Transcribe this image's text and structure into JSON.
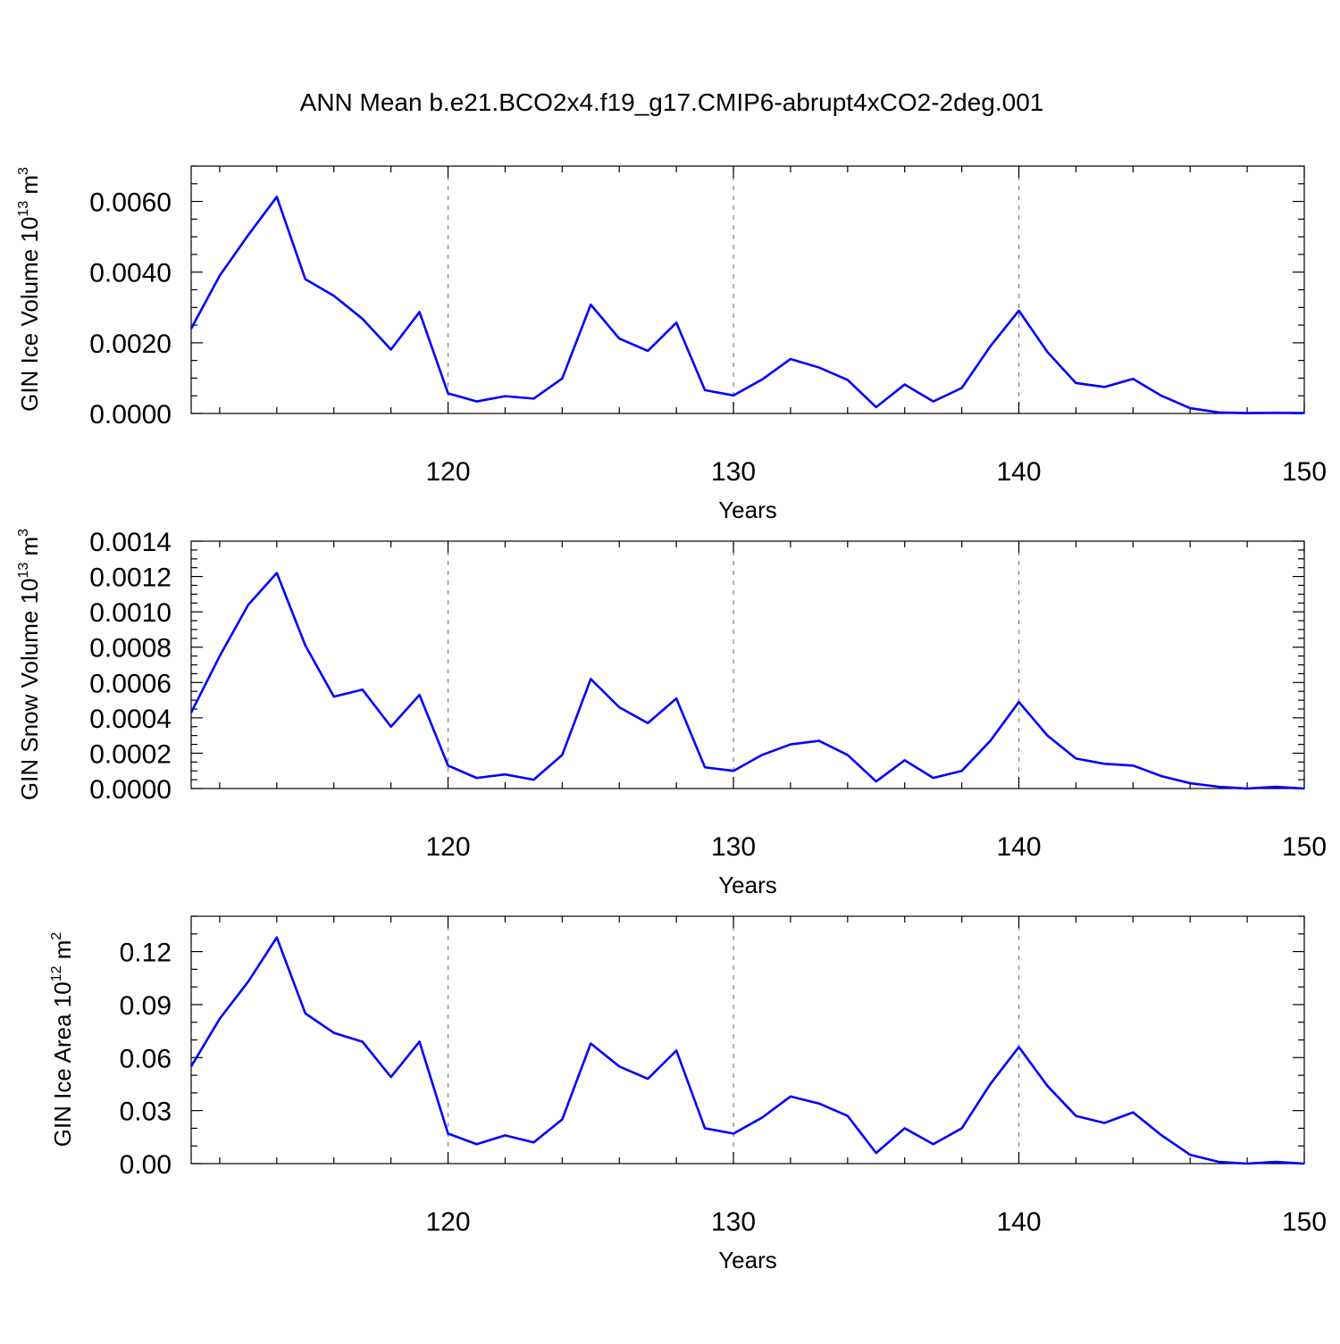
{
  "page": {
    "title": "ANN Mean b.e21.BCO2x4.f19_g17.CMIP6-abrupt4xCO2-2deg.001"
  },
  "colors": {
    "series": "#0000ff",
    "axes": "#000000",
    "grid": "#888888"
  },
  "chart_data": [
    {
      "type": "line",
      "title": "",
      "xlabel": "Years",
      "ylabel": "GIN Ice Volume 10",
      "ylabel_sup": "13",
      "ylabel_unit": " m",
      "ylabel_unit_sup": "3",
      "xlim": [
        111,
        150
      ],
      "ylim": [
        0,
        0.007
      ],
      "xticks": [
        120,
        130,
        140,
        150
      ],
      "xtick_labels": [
        "120",
        "130",
        "140",
        "150"
      ],
      "yticks": [
        0.0,
        0.002,
        0.004,
        0.006
      ],
      "ytick_labels": [
        "0.0000",
        "0.0020",
        "0.0040",
        "0.0060"
      ],
      "y_minor_step": 0.0005,
      "grid": "x-major dashed",
      "x": [
        111,
        112,
        113,
        114,
        115,
        116,
        117,
        118,
        119,
        120,
        121,
        122,
        123,
        124,
        125,
        126,
        127,
        128,
        129,
        130,
        131,
        132,
        133,
        134,
        135,
        136,
        137,
        138,
        139,
        140,
        141,
        142,
        143,
        144,
        145,
        146,
        147,
        148,
        149,
        150
      ],
      "series": [
        {
          "values": [
            0.0024,
            0.0039,
            0.00505,
            0.00613,
            0.0038,
            0.00333,
            0.00268,
            0.00181,
            0.00287,
            0.00057,
            0.00034,
            0.00049,
            0.00042,
            0.00099,
            0.00308,
            0.00212,
            0.00177,
            0.00257,
            0.00066,
            0.00051,
            0.00096,
            0.00154,
            0.0013,
            0.00095,
            0.00018,
            0.00082,
            0.00034,
            0.00072,
            0.0019,
            0.00291,
            0.00174,
            0.00086,
            0.00075,
            0.00098,
            0.0005,
            0.00015,
            3e-05,
            1e-05,
            2e-05,
            1e-05
          ]
        }
      ]
    },
    {
      "type": "line",
      "title": "",
      "xlabel": "Years",
      "ylabel": "GIN Snow Volume 10",
      "ylabel_sup": "13",
      "ylabel_unit": " m",
      "ylabel_unit_sup": "3",
      "xlim": [
        111,
        150
      ],
      "ylim": [
        0,
        0.0014
      ],
      "xticks": [
        120,
        130,
        140,
        150
      ],
      "xtick_labels": [
        "120",
        "130",
        "140",
        "150"
      ],
      "yticks": [
        0.0,
        0.0002,
        0.0004,
        0.0006,
        0.0008,
        0.001,
        0.0012,
        0.0014
      ],
      "ytick_labels": [
        "0.0000",
        "0.0002",
        "0.0004",
        "0.0006",
        "0.0008",
        "0.0010",
        "0.0012",
        "0.0014"
      ],
      "y_minor_step": 5e-05,
      "grid": "x-major dashed",
      "x": [
        111,
        112,
        113,
        114,
        115,
        116,
        117,
        118,
        119,
        120,
        121,
        122,
        123,
        124,
        125,
        126,
        127,
        128,
        129,
        130,
        131,
        132,
        133,
        134,
        135,
        136,
        137,
        138,
        139,
        140,
        141,
        142,
        143,
        144,
        145,
        146,
        147,
        148,
        149,
        150
      ],
      "series": [
        {
          "values": [
            0.00043,
            0.00075,
            0.00104,
            0.00122,
            0.00081,
            0.00052,
            0.00056,
            0.00035,
            0.00053,
            0.00013,
            6e-05,
            8e-05,
            5e-05,
            0.00019,
            0.00062,
            0.00046,
            0.00037,
            0.00051,
            0.00012,
            0.0001,
            0.00019,
            0.00025,
            0.00027,
            0.00019,
            4e-05,
            0.00016,
            6e-05,
            0.0001,
            0.00027,
            0.00049,
            0.0003,
            0.00017,
            0.00014,
            0.00013,
            7e-05,
            3e-05,
            1e-05,
            0.0,
            1e-05,
            0.0
          ]
        }
      ]
    },
    {
      "type": "line",
      "title": "",
      "xlabel": "Years",
      "ylabel": "GIN Ice Area 10",
      "ylabel_sup": "12",
      "ylabel_unit": " m",
      "ylabel_unit_sup": "2",
      "xlim": [
        111,
        150
      ],
      "ylim": [
        0,
        0.14
      ],
      "xticks": [
        120,
        130,
        140,
        150
      ],
      "xtick_labels": [
        "120",
        "130",
        "140",
        "150"
      ],
      "yticks": [
        0.0,
        0.03,
        0.06,
        0.09,
        0.12
      ],
      "ytick_labels": [
        "0.00",
        "0.03",
        "0.06",
        "0.09",
        "0.12"
      ],
      "y_minor_step": 0.01,
      "grid": "x-major dashed",
      "x": [
        111,
        112,
        113,
        114,
        115,
        116,
        117,
        118,
        119,
        120,
        121,
        122,
        123,
        124,
        125,
        126,
        127,
        128,
        129,
        130,
        131,
        132,
        133,
        134,
        135,
        136,
        137,
        138,
        139,
        140,
        141,
        142,
        143,
        144,
        145,
        146,
        147,
        148,
        149,
        150
      ],
      "series": [
        {
          "values": [
            0.055,
            0.082,
            0.103,
            0.128,
            0.085,
            0.074,
            0.069,
            0.049,
            0.069,
            0.017,
            0.011,
            0.016,
            0.012,
            0.025,
            0.068,
            0.055,
            0.048,
            0.064,
            0.02,
            0.017,
            0.026,
            0.038,
            0.034,
            0.027,
            0.006,
            0.02,
            0.011,
            0.02,
            0.045,
            0.066,
            0.044,
            0.027,
            0.023,
            0.029,
            0.016,
            0.005,
            0.001,
            0.0,
            0.001,
            0.0
          ]
        }
      ]
    }
  ]
}
